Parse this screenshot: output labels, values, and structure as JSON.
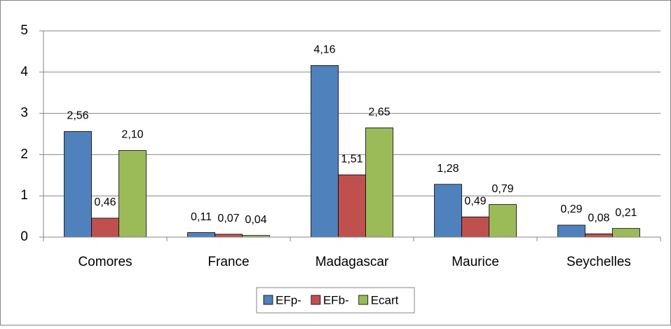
{
  "chart_data": {
    "type": "bar",
    "categories": [
      "Comores",
      "France",
      "Madagascar",
      "Maurice",
      "Seychelles"
    ],
    "series": [
      {
        "name": "EFp-",
        "color": "#4f81bd",
        "values": [
          2.56,
          0.11,
          4.16,
          1.28,
          0.29
        ],
        "value_labels": [
          "2,56",
          "0,11",
          "4,16",
          "1,28",
          "0,29"
        ]
      },
      {
        "name": "EFb-",
        "color": "#c0504d",
        "values": [
          0.46,
          0.07,
          1.51,
          0.49,
          0.08
        ],
        "value_labels": [
          "0,46",
          "0,07",
          "1,51",
          "0,49",
          "0,08"
        ]
      },
      {
        "name": "Ecart",
        "color": "#9bbb59",
        "values": [
          2.1,
          0.04,
          2.65,
          0.79,
          0.21
        ],
        "value_labels": [
          "2,10",
          "0,04",
          "2,65",
          "0,79",
          "0,21"
        ]
      }
    ],
    "ylim": [
      0,
      5
    ],
    "yticks": [
      0,
      1,
      2,
      3,
      4,
      5
    ],
    "grid": true,
    "legend": "bottom"
  }
}
